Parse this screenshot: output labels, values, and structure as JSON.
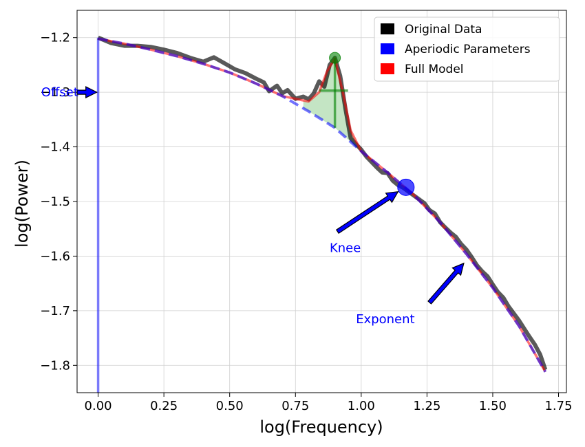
{
  "chart_data": {
    "type": "line",
    "xlabel": "log(Frequency)",
    "ylabel": "log(Power)",
    "xlim": [
      -0.08,
      1.78
    ],
    "ylim": [
      -1.85,
      -1.15
    ],
    "xticks": [
      0.0,
      0.25,
      0.5,
      0.75,
      1.0,
      1.25,
      1.5,
      1.75
    ],
    "xtick_labels": [
      "0.00",
      "0.25",
      "0.50",
      "0.75",
      "1.00",
      "1.25",
      "1.50",
      "1.75"
    ],
    "yticks": [
      -1.2,
      -1.3,
      -1.4,
      -1.5,
      -1.6,
      -1.7,
      -1.8
    ],
    "ytick_labels": [
      "−1.2",
      "−1.3",
      "−1.4",
      "−1.5",
      "−1.6",
      "−1.7",
      "−1.8"
    ],
    "grid": true,
    "legend_position": "top-right",
    "legend": [
      {
        "label": "Original Data",
        "color": "#000000"
      },
      {
        "label": "Aperiodic Parameters",
        "color": "#0000ff"
      },
      {
        "label": "Full Model",
        "color": "#ff0000"
      }
    ],
    "series": [
      {
        "name": "Original Data",
        "color": "#000000",
        "x": [
          0.0,
          0.05,
          0.1,
          0.15,
          0.2,
          0.25,
          0.3,
          0.35,
          0.4,
          0.44,
          0.48,
          0.52,
          0.56,
          0.6,
          0.63,
          0.65,
          0.68,
          0.7,
          0.72,
          0.75,
          0.78,
          0.8,
          0.82,
          0.84,
          0.86,
          0.88,
          0.9,
          0.92,
          0.94,
          0.96,
          0.98,
          1.0,
          1.02,
          1.04,
          1.06,
          1.08,
          1.1,
          1.12,
          1.14,
          1.16,
          1.18,
          1.2,
          1.22,
          1.24,
          1.26,
          1.28,
          1.3,
          1.32,
          1.34,
          1.36,
          1.38,
          1.4,
          1.42,
          1.44,
          1.46,
          1.48,
          1.5,
          1.52,
          1.54,
          1.56,
          1.58,
          1.6,
          1.62,
          1.64,
          1.66,
          1.68,
          1.7
        ],
        "y": [
          -1.2,
          -1.21,
          -1.215,
          -1.215,
          -1.217,
          -1.222,
          -1.228,
          -1.237,
          -1.244,
          -1.236,
          -1.247,
          -1.258,
          -1.265,
          -1.275,
          -1.282,
          -1.298,
          -1.288,
          -1.302,
          -1.296,
          -1.312,
          -1.308,
          -1.313,
          -1.302,
          -1.28,
          -1.29,
          -1.25,
          -1.237,
          -1.27,
          -1.33,
          -1.384,
          -1.395,
          -1.405,
          -1.418,
          -1.428,
          -1.438,
          -1.447,
          -1.448,
          -1.462,
          -1.47,
          -1.475,
          -1.482,
          -1.489,
          -1.496,
          -1.503,
          -1.516,
          -1.522,
          -1.538,
          -1.548,
          -1.557,
          -1.565,
          -1.578,
          -1.588,
          -1.602,
          -1.617,
          -1.628,
          -1.637,
          -1.652,
          -1.666,
          -1.676,
          -1.692,
          -1.705,
          -1.718,
          -1.733,
          -1.748,
          -1.762,
          -1.78,
          -1.808
        ]
      },
      {
        "name": "Full Model",
        "color": "#ff0000",
        "x": [
          0.0,
          0.1,
          0.2,
          0.3,
          0.4,
          0.5,
          0.6,
          0.7,
          0.8,
          0.84,
          0.87,
          0.9,
          0.93,
          0.96,
          1.0,
          1.1,
          1.2,
          1.3,
          1.4,
          1.5,
          1.6,
          1.7
        ],
        "y": [
          -1.202,
          -1.211,
          -1.222,
          -1.234,
          -1.248,
          -1.264,
          -1.284,
          -1.307,
          -1.317,
          -1.3,
          -1.262,
          -1.238,
          -1.3,
          -1.37,
          -1.408,
          -1.447,
          -1.488,
          -1.538,
          -1.596,
          -1.658,
          -1.728,
          -1.812
        ]
      },
      {
        "name": "Aperiodic Parameters",
        "color": "#0000ff",
        "x": [
          0.0,
          0.1,
          0.2,
          0.3,
          0.4,
          0.5,
          0.6,
          0.7,
          0.8,
          0.9,
          1.0,
          1.1,
          1.2,
          1.3,
          1.4,
          1.5,
          1.6,
          1.7
        ],
        "y": [
          -1.202,
          -1.211,
          -1.222,
          -1.234,
          -1.248,
          -1.264,
          -1.284,
          -1.307,
          -1.335,
          -1.365,
          -1.408,
          -1.447,
          -1.488,
          -1.538,
          -1.596,
          -1.658,
          -1.728,
          -1.812
        ]
      }
    ],
    "peak": {
      "center": 0.9,
      "power": -1.237,
      "width_range": [
        0.84,
        0.95
      ],
      "half_height": -1.297,
      "color": "#008000"
    },
    "offset_line": {
      "x": 0.0,
      "y_top": -1.2,
      "y_bottom": -1.85,
      "color": "#0000ff"
    },
    "knee_point": {
      "x": 1.17,
      "y": -1.474,
      "color": "#0000ff"
    },
    "annotations": [
      {
        "text": "Offset",
        "text_x": -0.075,
        "text_y": -1.3,
        "arrow_from": [
          -0.08,
          -1.3
        ],
        "arrow_to": [
          -0.005,
          -1.3
        ],
        "anchor": "end"
      },
      {
        "text": "Knee",
        "text_x": 0.88,
        "text_y": -1.585,
        "arrow_from": [
          0.91,
          -1.555
        ],
        "arrow_to": [
          1.14,
          -1.482
        ],
        "anchor": "start"
      },
      {
        "text": "Exponent",
        "text_x": 0.98,
        "text_y": -1.715,
        "arrow_from": [
          1.26,
          -1.685
        ],
        "arrow_to": [
          1.39,
          -1.613
        ],
        "anchor": "start"
      }
    ]
  }
}
